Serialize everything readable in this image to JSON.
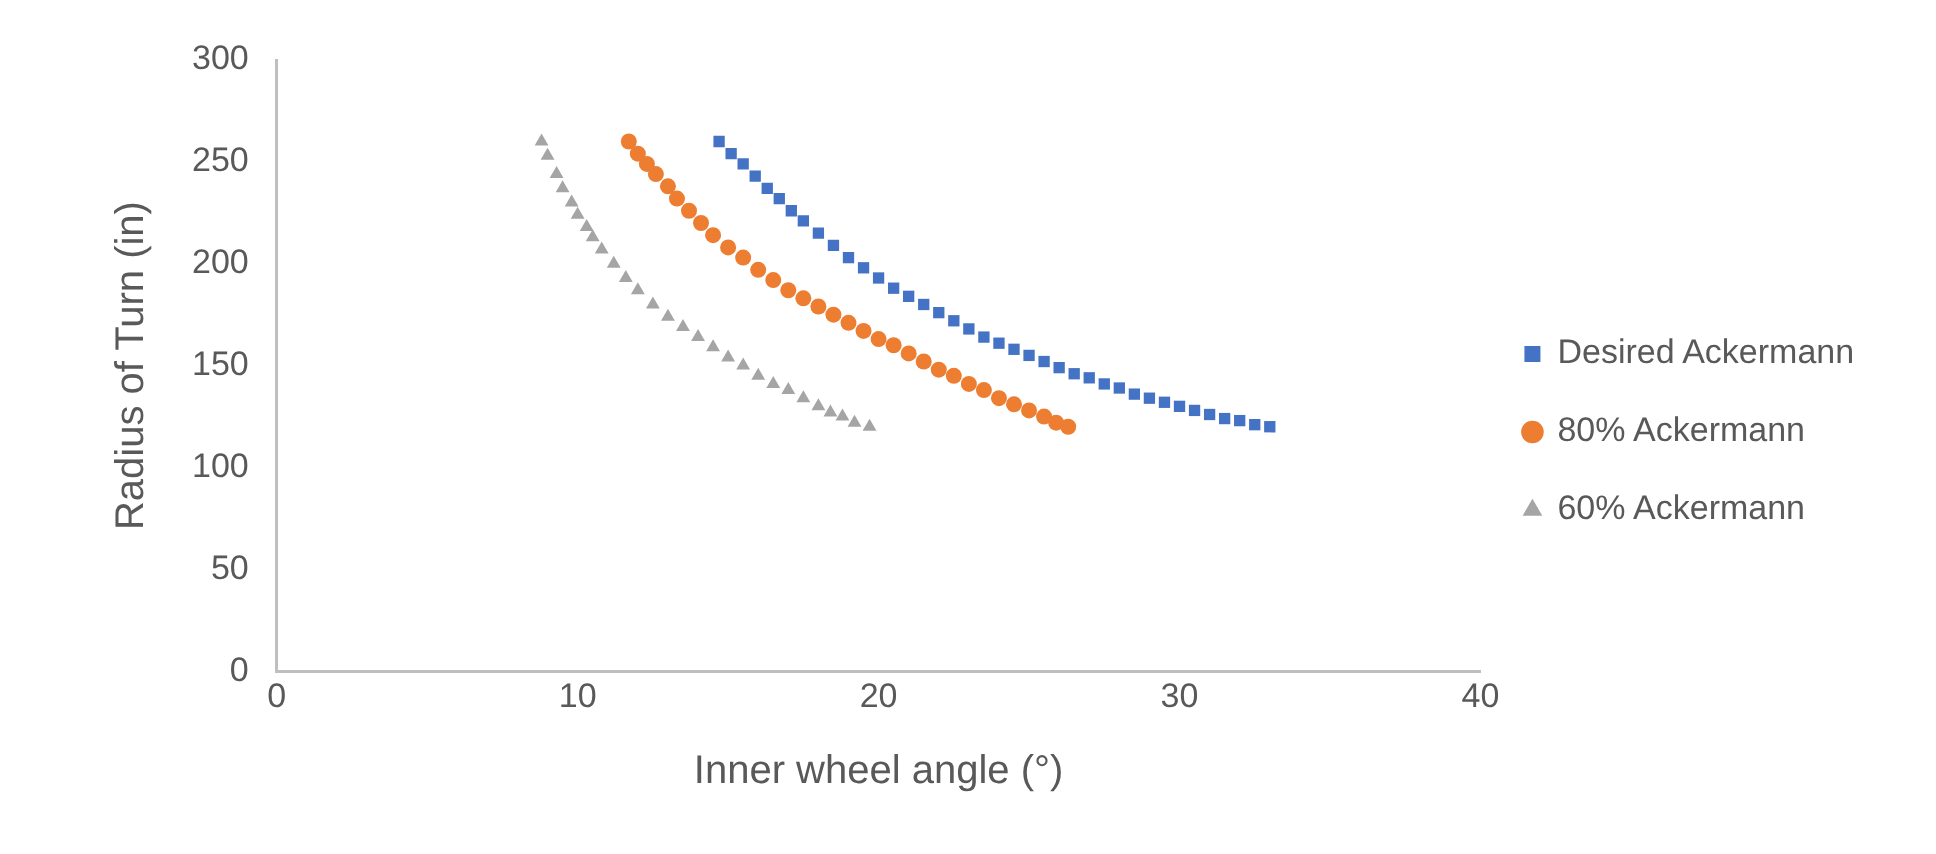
{
  "chart_data": {
    "type": "scatter",
    "xlabel": "Inner wheel angle (°)",
    "ylabel": "Radius of Turn (in)",
    "xlim": [
      0,
      40
    ],
    "xticks": [
      0,
      10,
      20,
      30,
      40
    ],
    "ylim": [
      0,
      300
    ],
    "yticks": [
      0,
      50,
      100,
      150,
      200,
      250,
      300
    ],
    "grid": false,
    "legend": "right",
    "series": [
      {
        "name": "Desired Ackermann",
        "color": "#4472c4",
        "marker": "square",
        "x": [
          14.7,
          15.1,
          15.5,
          15.9,
          16.3,
          16.7,
          17.1,
          17.5,
          18,
          18.5,
          19,
          19.5,
          20,
          20.5,
          21,
          21.5,
          22,
          22.5,
          23,
          23.5,
          24,
          24.5,
          25,
          25.5,
          26,
          26.5,
          27,
          27.5,
          28,
          28.5,
          29,
          29.5,
          30,
          30.5,
          31,
          31.5,
          32,
          32.5,
          33
        ],
        "values": [
          260,
          254,
          249,
          243,
          237,
          232,
          226,
          221,
          215,
          209,
          203,
          198,
          193,
          188,
          184,
          180,
          176,
          172,
          168,
          164,
          161,
          158,
          155,
          152,
          149,
          146,
          144,
          141,
          139,
          136,
          134,
          132,
          130,
          128,
          126,
          124,
          123,
          121,
          120
        ]
      },
      {
        "name": "80% Ackermann",
        "color": "#ed7d31",
        "marker": "circle",
        "x": [
          11.7,
          12,
          12.3,
          12.6,
          13,
          13.3,
          13.7,
          14.1,
          14.5,
          15,
          15.5,
          16,
          16.5,
          17,
          17.5,
          18,
          18.5,
          19,
          19.5,
          20,
          20.5,
          21,
          21.5,
          22,
          22.5,
          23,
          23.5,
          24,
          24.5,
          25,
          25.5,
          25.9,
          26.3
        ],
        "values": [
          260,
          254,
          249,
          244,
          238,
          232,
          226,
          220,
          214,
          208,
          203,
          197,
          192,
          187,
          183,
          179,
          175,
          171,
          167,
          163,
          160,
          156,
          152,
          148,
          145,
          141,
          138,
          134,
          131,
          128,
          125,
          122,
          120
        ]
      },
      {
        "name": "60% Ackermann",
        "color": "#a5a5a5",
        "marker": "triangle",
        "x": [
          8.8,
          9,
          9.3,
          9.5,
          9.8,
          10,
          10.3,
          10.5,
          10.8,
          11.2,
          11.6,
          12,
          12.5,
          13,
          13.5,
          14,
          14.5,
          15,
          15.5,
          16,
          16.5,
          17,
          17.5,
          18,
          18.4,
          18.8,
          19.2,
          19.7
        ],
        "values": [
          260,
          253,
          244,
          237,
          230,
          224,
          218,
          213,
          207,
          200,
          193,
          187,
          180,
          174,
          169,
          164,
          159,
          154,
          150,
          145,
          141,
          138,
          134,
          130,
          127,
          125,
          122,
          120
        ]
      }
    ]
  }
}
